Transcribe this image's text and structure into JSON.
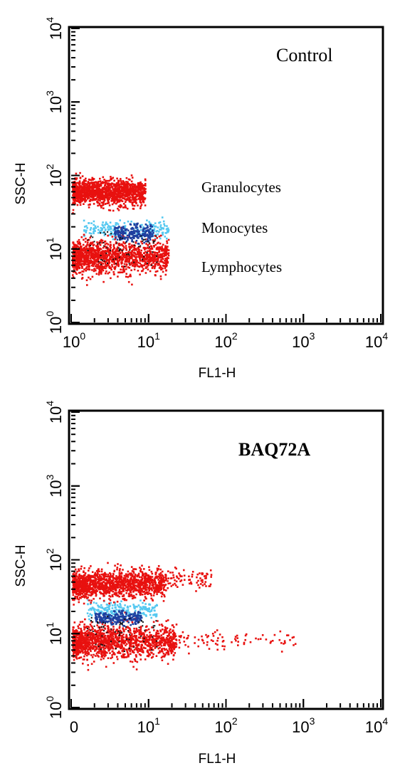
{
  "chart_data": [
    {
      "type": "scatter",
      "title": "Control",
      "xlabel": "FL1-H",
      "ylabel": "SSC-H",
      "x_scale": "log",
      "y_scale": "log",
      "xlim": [
        1,
        10000
      ],
      "ylim": [
        1,
        10000
      ],
      "x_ticks": [
        {
          "base": "10",
          "exp": "0"
        },
        {
          "base": "10",
          "exp": "1"
        },
        {
          "base": "10",
          "exp": "2"
        },
        {
          "base": "10",
          "exp": "3"
        },
        {
          "base": "10",
          "exp": "4"
        }
      ],
      "y_ticks": [
        {
          "base": "10",
          "exp": "0"
        },
        {
          "base": "10",
          "exp": "1"
        },
        {
          "base": "10",
          "exp": "2"
        },
        {
          "base": "10",
          "exp": "3"
        },
        {
          "base": "10",
          "exp": "4"
        }
      ],
      "annotations": [
        "Granulocytes",
        "Monocytes",
        "Lymphocytes"
      ],
      "series": [
        {
          "color": "#e8110f",
          "clusters": [
            {
              "x_log": [
                0.0,
                0.95
              ],
              "y_log_center": 1.78,
              "y_log_spread": 0.12
            },
            {
              "x_log": [
                0.0,
                1.25
              ],
              "y_log_center": 0.9,
              "y_log_spread": 0.16
            }
          ]
        },
        {
          "color": "#1f3f9f",
          "clusters": [
            {
              "x_log": [
                0.55,
                1.05
              ],
              "y_log_center": 1.22,
              "y_log_spread": 0.08
            }
          ]
        },
        {
          "color": "#55c8f0",
          "clusters": [
            {
              "x_log": [
                0.15,
                1.25
              ],
              "y_log_center": 1.28,
              "y_log_spread": 0.08
            }
          ]
        }
      ],
      "grid": false,
      "legend": "none"
    },
    {
      "type": "scatter",
      "title": "BAQ72A",
      "xlabel": "FL1-H",
      "ylabel": "SSC-H",
      "x_scale": "log",
      "y_scale": "log",
      "xlim": [
        1,
        10000
      ],
      "ylim": [
        1,
        10000
      ],
      "x_ticks": [
        {
          "base": "0",
          "exp": ""
        },
        {
          "base": "10",
          "exp": "1"
        },
        {
          "base": "10",
          "exp": "2"
        },
        {
          "base": "10",
          "exp": "3"
        },
        {
          "base": "10",
          "exp": "4"
        }
      ],
      "y_ticks": [
        {
          "base": "10",
          "exp": "0"
        },
        {
          "base": "10",
          "exp": "1"
        },
        {
          "base": "10",
          "exp": "2"
        },
        {
          "base": "10",
          "exp": "3"
        },
        {
          "base": "10",
          "exp": "4"
        }
      ],
      "annotations": [],
      "series": [
        {
          "color": "#e8110f",
          "clusters": [
            {
              "x_log": [
                0.0,
                1.2
              ],
              "y_log_center": 1.68,
              "y_log_spread": 0.13
            },
            {
              "x_log": [
                0.0,
                1.35
              ],
              "y_log_center": 0.9,
              "y_log_spread": 0.16
            },
            {
              "x_log": [
                1.2,
                2.9
              ],
              "y_log_center": 0.92,
              "y_log_spread": 0.1,
              "sparse": true
            },
            {
              "x_log": [
                1.2,
                1.8
              ],
              "y_log_center": 1.75,
              "y_log_spread": 0.1,
              "sparse": true
            }
          ]
        },
        {
          "color": "#1f3f9f",
          "clusters": [
            {
              "x_log": [
                0.3,
                0.9
              ],
              "y_log_center": 1.22,
              "y_log_spread": 0.06
            }
          ]
        },
        {
          "color": "#55c8f0",
          "clusters": [
            {
              "x_log": [
                0.2,
                1.1
              ],
              "y_log_center": 1.33,
              "y_log_spread": 0.08
            }
          ]
        }
      ],
      "grid": false,
      "legend": "none"
    }
  ]
}
